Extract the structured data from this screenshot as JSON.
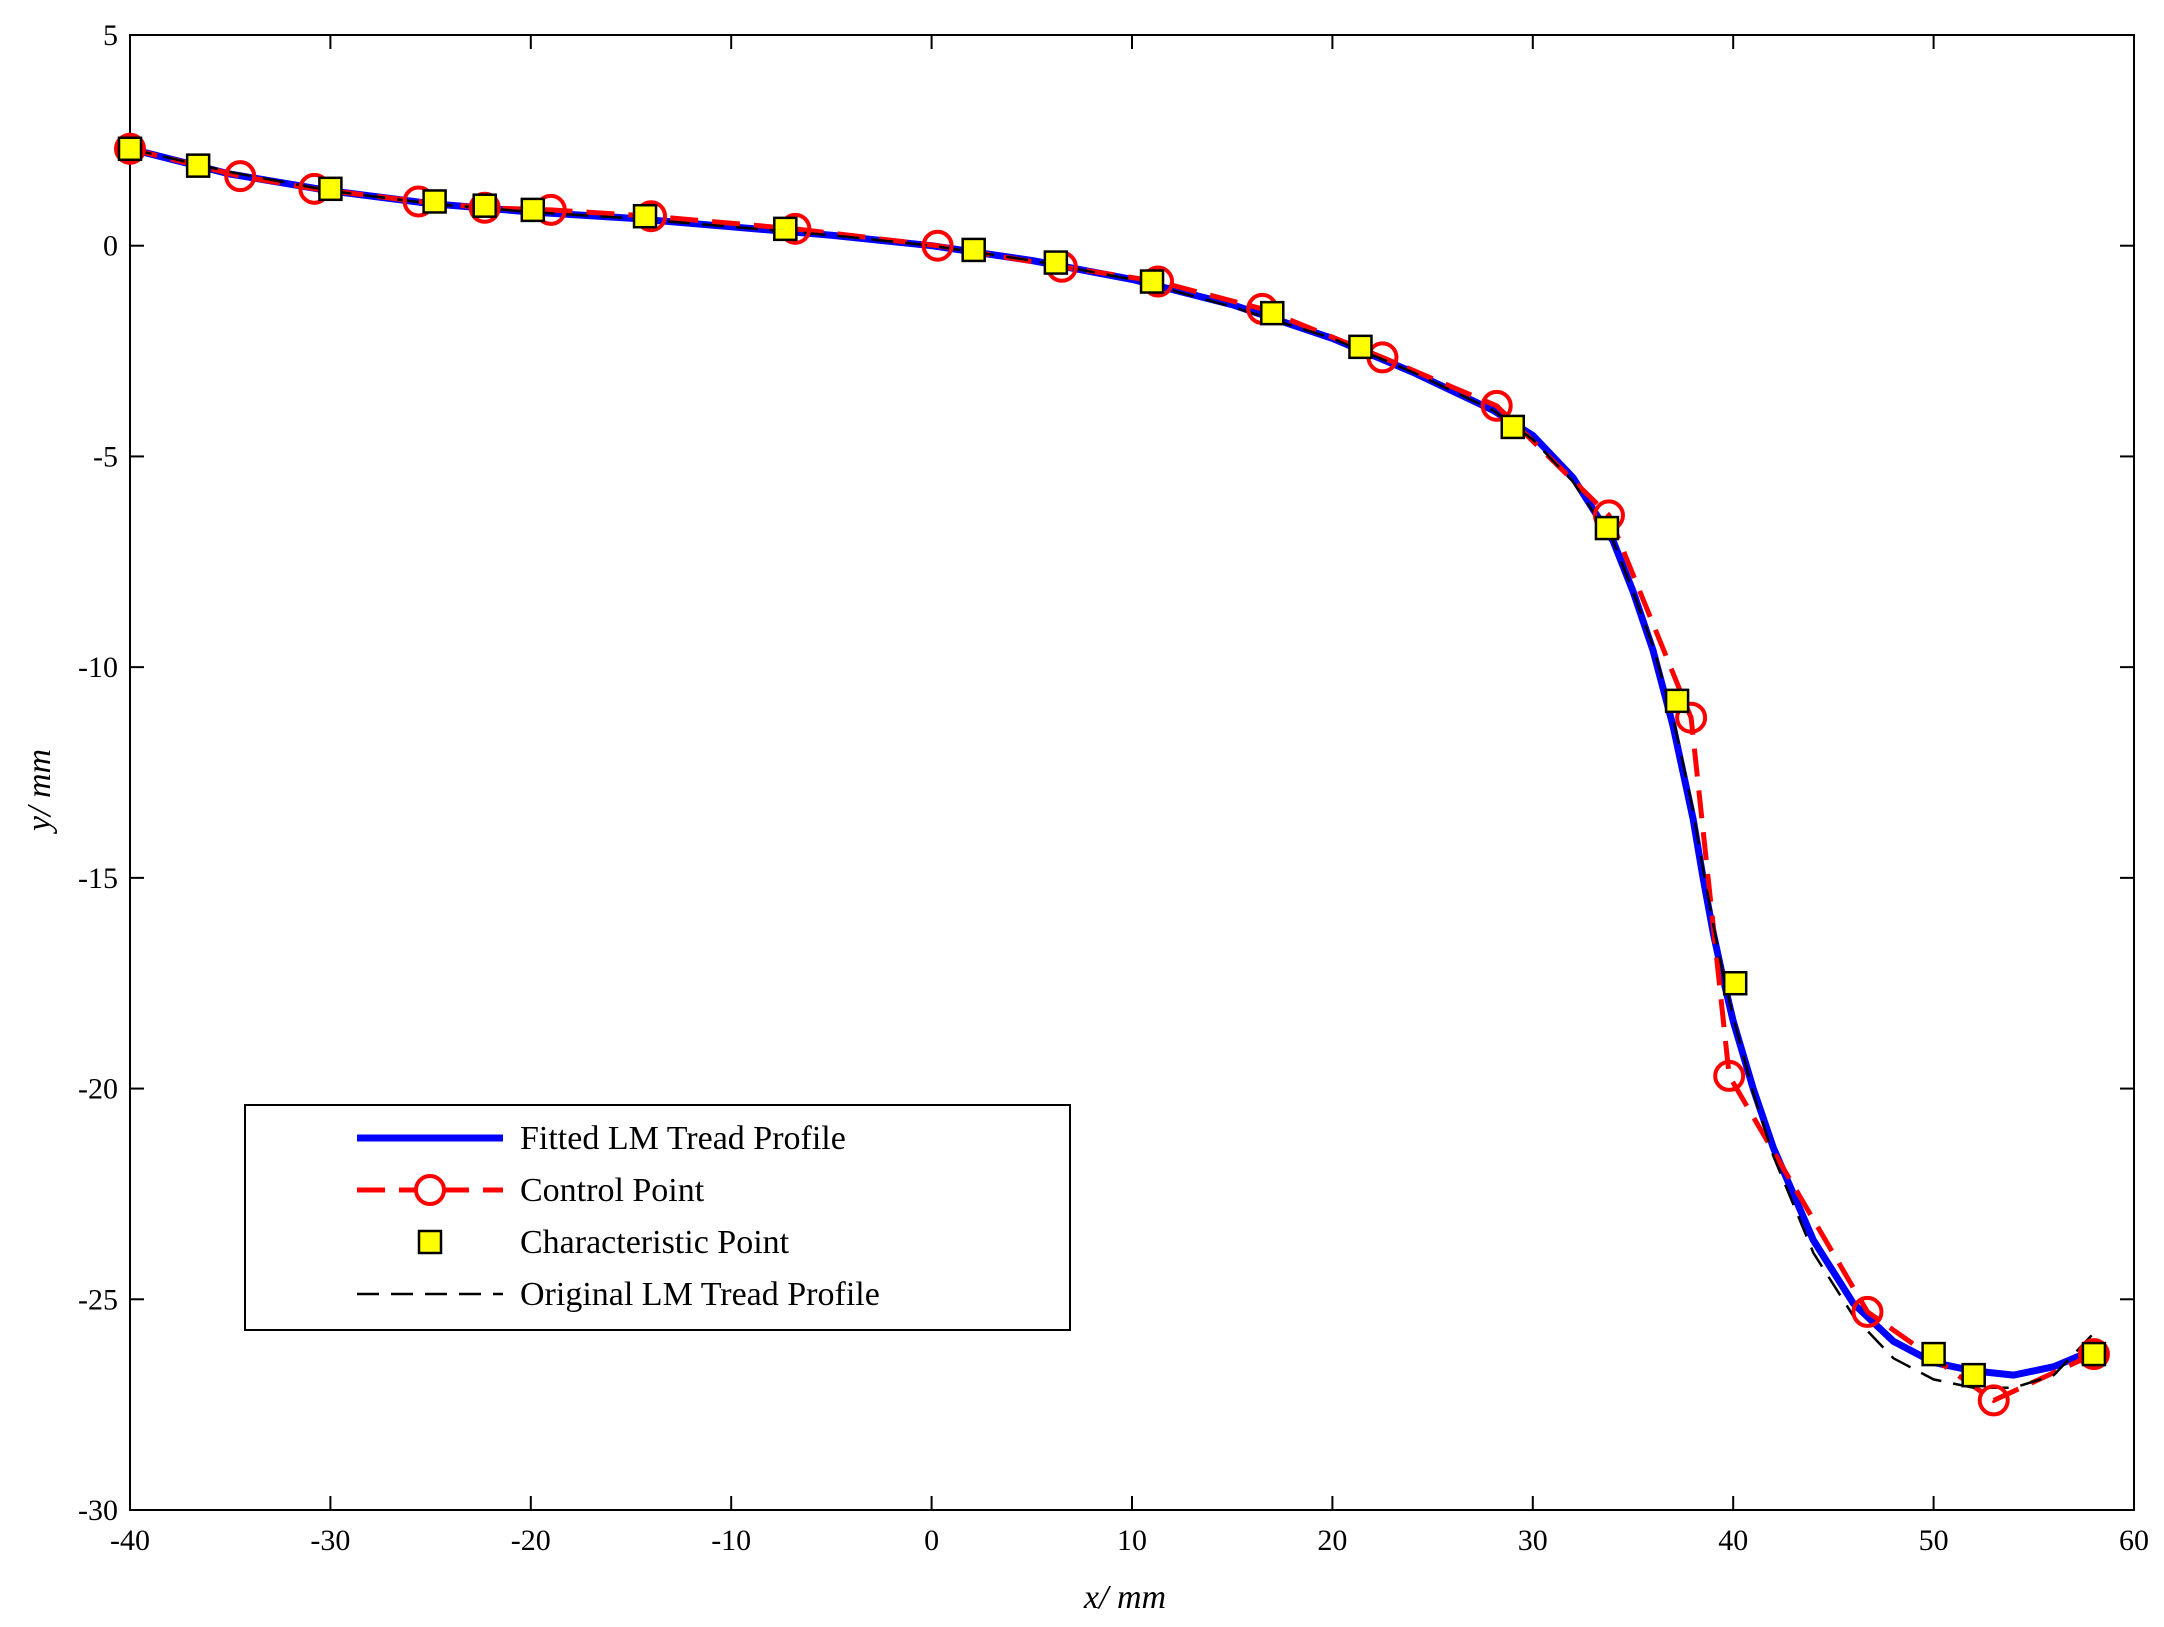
{
  "chart_data": {
    "type": "line",
    "xlabel": "x/ mm",
    "ylabel": "y/ mm",
    "xlim": [
      -40,
      60
    ],
    "ylim": [
      -30,
      5
    ],
    "xticks": [
      -40,
      -30,
      -20,
      -10,
      0,
      10,
      20,
      30,
      40,
      50,
      60
    ],
    "yticks": [
      5,
      0,
      -5,
      -10,
      -15,
      -20,
      -25,
      -30
    ],
    "grid": false,
    "legend_position": "lower-left",
    "series": [
      {
        "name": "Fitted LM Tread Profile",
        "style": "solid-thick",
        "color": "#0000ff",
        "x": [
          -40,
          -35,
          -30,
          -25,
          -20,
          -15,
          -10,
          -5,
          0,
          5,
          10,
          15,
          20,
          24,
          28,
          30,
          32,
          34,
          35,
          36,
          37,
          38,
          38.5,
          39,
          39.5,
          40,
          41,
          42,
          44,
          46,
          48,
          50,
          52,
          54,
          56,
          58
        ],
        "y": [
          2.3,
          1.7,
          1.3,
          1.0,
          0.8,
          0.65,
          0.45,
          0.25,
          0,
          -0.35,
          -0.8,
          -1.4,
          -2.2,
          -3.0,
          -3.9,
          -4.5,
          -5.5,
          -7.0,
          -8.2,
          -9.6,
          -11.4,
          -13.6,
          -15.0,
          -16.3,
          -17.4,
          -18.4,
          -20.0,
          -21.4,
          -23.6,
          -25.1,
          -26.0,
          -26.5,
          -26.7,
          -26.8,
          -26.6,
          -26.2
        ]
      },
      {
        "name": "Control Point",
        "style": "dashed-circle",
        "color": "#ff0000",
        "x": [
          -40,
          -34.5,
          -30.8,
          -25.6,
          -22.3,
          -19,
          -14,
          -6.8,
          0.3,
          6.5,
          11.3,
          16.5,
          22.5,
          28.2,
          33.8,
          37.9,
          39.8,
          46.7,
          53,
          58
        ],
        "y": [
          2.3,
          1.65,
          1.35,
          1.05,
          0.9,
          0.85,
          0.7,
          0.4,
          0,
          -0.5,
          -0.85,
          -1.5,
          -2.65,
          -3.8,
          -6.4,
          -11.2,
          -19.7,
          -25.3,
          -27.4,
          -26.3
        ]
      },
      {
        "name": "Characteristic Point",
        "style": "square-marker",
        "color": "#ffff00",
        "x": [
          -40,
          -36.6,
          -30,
          -24.8,
          -22.3,
          -19.9,
          -14.3,
          -7.3,
          2.1,
          6.2,
          11,
          17,
          21.4,
          29,
          33.7,
          37.2,
          40.1,
          50,
          52,
          58
        ],
        "y": [
          2.3,
          1.9,
          1.35,
          1.05,
          0.95,
          0.85,
          0.7,
          0.4,
          -0.1,
          -0.4,
          -0.85,
          -1.6,
          -2.4,
          -4.3,
          -6.7,
          -10.8,
          -17.5,
          -26.3,
          -26.8,
          -26.3
        ]
      },
      {
        "name": "Original LM Tread Profile",
        "style": "dashed-thin",
        "color": "#000000",
        "x": [
          -40,
          -35,
          -30,
          -25,
          -20,
          -15,
          -10,
          -5,
          0,
          5,
          10,
          15,
          20,
          24,
          28,
          30,
          32,
          34,
          35,
          36,
          37,
          38,
          38.5,
          39,
          39.5,
          40,
          41,
          42,
          44,
          46,
          48,
          50,
          52,
          54,
          56,
          58
        ],
        "y": [
          2.3,
          1.75,
          1.3,
          1.0,
          0.8,
          0.65,
          0.45,
          0.25,
          0,
          -0.35,
          -0.8,
          -1.45,
          -2.2,
          -3.0,
          -3.9,
          -4.6,
          -5.6,
          -7.0,
          -8.2,
          -9.5,
          -11.2,
          -13.4,
          -14.8,
          -16.1,
          -17.3,
          -18.3,
          -20.1,
          -21.6,
          -23.9,
          -25.4,
          -26.4,
          -26.9,
          -27.1,
          -27.1,
          -26.8,
          -25.8
        ]
      }
    ]
  }
}
